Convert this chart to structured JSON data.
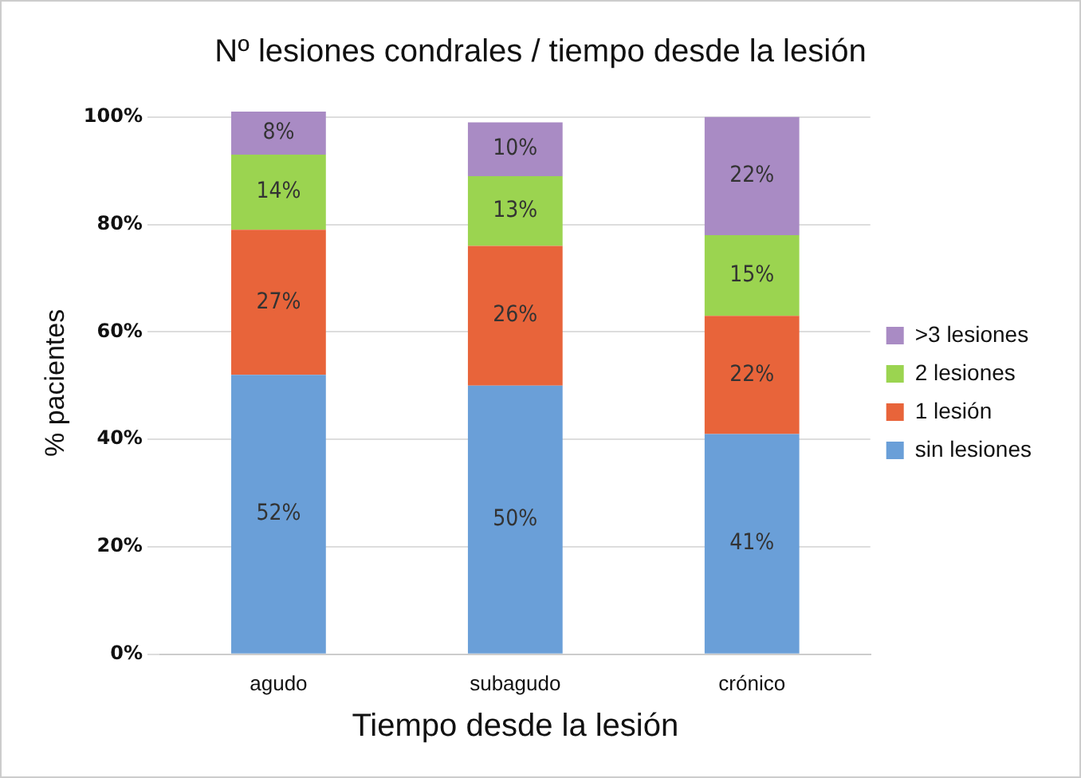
{
  "chart_data": {
    "type": "bar",
    "stacked": true,
    "title": "Nº lesiones condrales / tiempo desde la lesión",
    "xlabel": "Tiempo desde la lesión",
    "ylabel": "% pacientes",
    "categories": [
      "agudo",
      "subagudo",
      "crónico"
    ],
    "series": [
      {
        "name": "sin lesiones",
        "color": "#6a9fd8",
        "values": [
          52,
          50,
          41
        ],
        "value_labels": [
          "52%",
          "50%",
          "41%"
        ]
      },
      {
        "name": "1 lesión",
        "color": "#e8643a",
        "values": [
          27,
          26,
          22
        ],
        "value_labels": [
          "27%",
          "26%",
          "22%"
        ]
      },
      {
        "name": "2 lesiones",
        "color": "#9bd450",
        "values": [
          14,
          13,
          15
        ],
        "value_labels": [
          "14%",
          "13%",
          "15%"
        ]
      },
      {
        "name": ">3 lesiones",
        "color": "#a98bc4",
        "values": [
          8,
          10,
          22
        ],
        "value_labels": [
          "8%",
          "10%",
          "22%"
        ]
      }
    ],
    "ylim": [
      0,
      101
    ],
    "yticks": [
      {
        "value": 0,
        "label": "0%"
      },
      {
        "value": 20,
        "label": "20%"
      },
      {
        "value": 40,
        "label": "40%"
      },
      {
        "value": 60,
        "label": "60%"
      },
      {
        "value": 80,
        "label": "80%"
      },
      {
        "value": 100,
        "label": "100%"
      }
    ],
    "grid": "y",
    "legend": "right"
  }
}
